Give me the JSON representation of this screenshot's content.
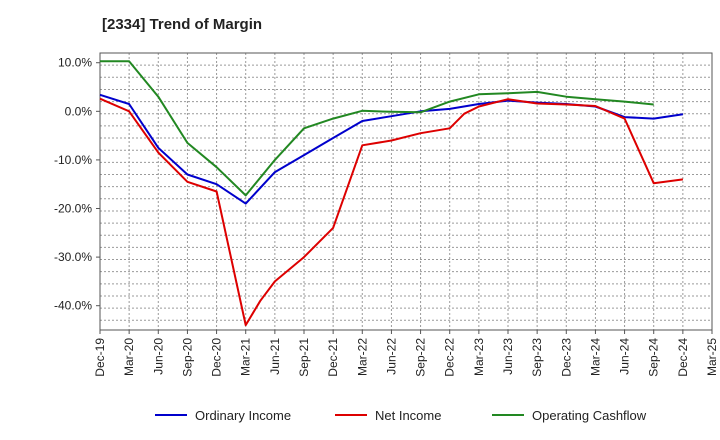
{
  "chart_data": {
    "type": "line",
    "title": "[2334]  Trend of Margin",
    "xlabel": "",
    "ylabel": "",
    "ylim": [
      -45,
      12
    ],
    "yticks": [
      10,
      0,
      -10,
      -20,
      -30,
      -40
    ],
    "ytick_labels": [
      "10.0%",
      "0.0%",
      "-10.0%",
      "-20.0%",
      "-30.0%",
      "-40.0%"
    ],
    "grid": true,
    "legend_position": "bottom",
    "x": [
      "Dec-19",
      "Mar-20",
      "Jun-20",
      "Sep-20",
      "Dec-20",
      "Mar-21",
      "Jun-21",
      "Sep-21",
      "Dec-21",
      "Mar-22",
      "Jun-22",
      "Sep-22",
      "Dec-22",
      "Mar-23",
      "Jun-23",
      "Sep-23",
      "Dec-23",
      "Mar-24",
      "Jun-24",
      "Sep-24",
      "Dec-24",
      "Mar-25"
    ],
    "series": [
      {
        "name": "Ordinary Income",
        "color": "#0000cc",
        "points": [
          [
            0,
            3.4
          ],
          [
            1,
            1.5
          ],
          [
            2,
            -7.5
          ],
          [
            3,
            -13
          ],
          [
            4,
            -15
          ],
          [
            5,
            -19
          ],
          [
            6,
            -12.5
          ],
          [
            7,
            -9
          ],
          [
            8,
            -5.5
          ],
          [
            9,
            -2
          ],
          [
            10,
            -1
          ],
          [
            11,
            0
          ],
          [
            12,
            0.5
          ],
          [
            13,
            1.5
          ],
          [
            14,
            2.2
          ],
          [
            15,
            1.8
          ],
          [
            16,
            1.5
          ],
          [
            17,
            1
          ],
          [
            18,
            -1.2
          ],
          [
            19,
            -1.5
          ],
          [
            20,
            -0.6
          ]
        ]
      },
      {
        "name": "Net Income",
        "color": "#dd0000",
        "points": [
          [
            0,
            2.6
          ],
          [
            1,
            0
          ],
          [
            2,
            -8.5
          ],
          [
            3,
            -14.5
          ],
          [
            4,
            -16.5
          ],
          [
            5,
            -44
          ],
          [
            5.5,
            -39
          ],
          [
            6,
            -35
          ],
          [
            7,
            -30
          ],
          [
            8,
            -24
          ],
          [
            9,
            -7
          ],
          [
            10,
            -6
          ],
          [
            11,
            -4.5
          ],
          [
            12,
            -3.5
          ],
          [
            12.5,
            -0.5
          ],
          [
            13,
            1
          ],
          [
            14,
            2.5
          ],
          [
            15,
            1.6
          ],
          [
            16,
            1.4
          ],
          [
            17,
            1.1
          ],
          [
            18,
            -1.5
          ],
          [
            19,
            -14.8
          ],
          [
            20,
            -14
          ]
        ]
      },
      {
        "name": "Operating Cashflow",
        "color": "#228822",
        "points": [
          [
            0,
            10.3
          ],
          [
            1,
            10.3
          ],
          [
            2,
            3
          ],
          [
            3,
            -6.5
          ],
          [
            4,
            -11.5
          ],
          [
            5,
            -17.3
          ],
          [
            6,
            -10
          ],
          [
            7,
            -3.5
          ],
          [
            8,
            -1.5
          ],
          [
            9,
            0.1
          ],
          [
            10,
            -0.1
          ],
          [
            11,
            -0.2
          ],
          [
            12,
            2
          ],
          [
            13,
            3.5
          ],
          [
            14,
            3.7
          ],
          [
            15,
            4
          ],
          [
            16,
            3
          ],
          [
            17,
            2.5
          ],
          [
            18,
            2
          ],
          [
            19,
            1.4
          ]
        ]
      }
    ]
  }
}
